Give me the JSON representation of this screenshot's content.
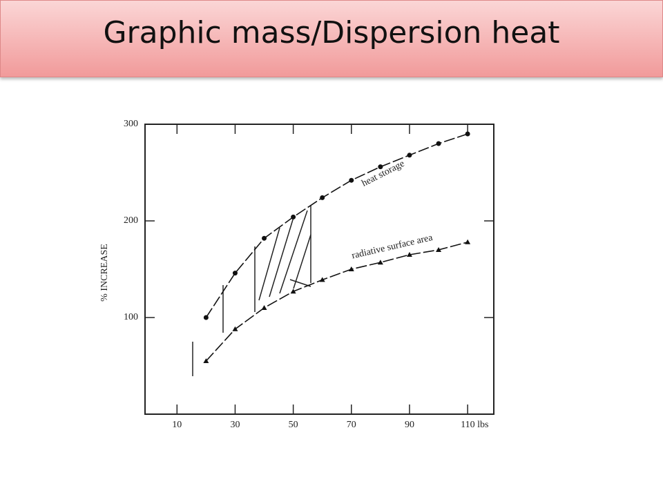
{
  "header": {
    "title": "Graphic mass/Dispersion heat"
  },
  "chart_data": {
    "type": "line",
    "y_label": "% INCREASE",
    "xlim": [
      -1,
      119
    ],
    "ylim": [
      0,
      300
    ],
    "xticks": [
      10,
      30,
      50,
      70,
      90,
      {
        "value": 110,
        "label": "110 lbs"
      }
    ],
    "yticks": [
      100,
      200,
      300
    ],
    "series": [
      {
        "name": "heat storage",
        "color": "#111111",
        "marker": "circle",
        "x": [
          20,
          30,
          40,
          50,
          60,
          70,
          80,
          90,
          100,
          110
        ],
        "values": [
          100,
          146,
          182,
          204,
          224,
          242,
          256,
          268,
          280,
          290
        ]
      },
      {
        "name": "radiative surface area",
        "color": "#111111",
        "marker": "triangle",
        "x": [
          20,
          30,
          40,
          50,
          60,
          70,
          80,
          90,
          100,
          110
        ],
        "values": [
          55,
          88,
          110,
          127,
          139,
          150,
          157,
          165,
          170,
          178
        ]
      }
    ]
  }
}
